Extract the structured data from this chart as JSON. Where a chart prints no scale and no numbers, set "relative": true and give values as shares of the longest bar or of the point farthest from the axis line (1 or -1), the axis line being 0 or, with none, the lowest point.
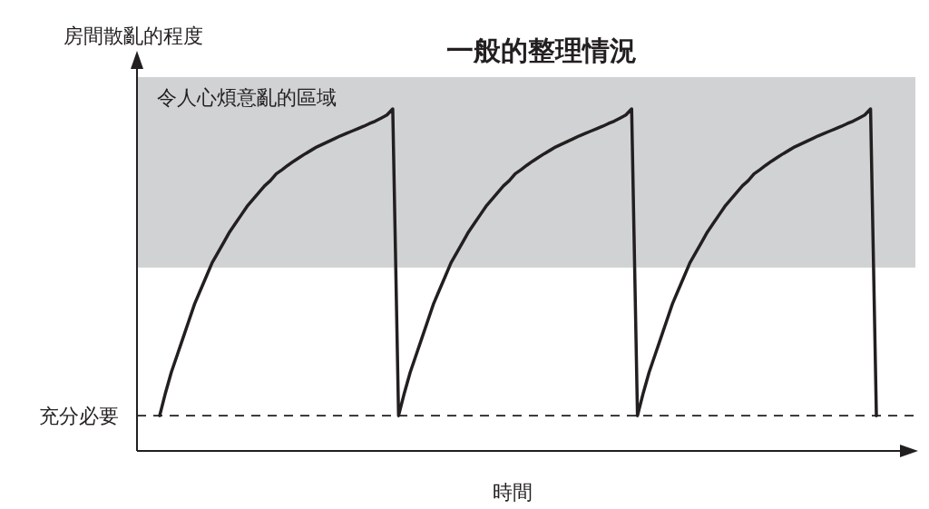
{
  "chart_data": {
    "type": "line",
    "title": "一般的整理情況",
    "xlabel": "時間",
    "ylabel": "房間散亂的程度",
    "relative": true,
    "categories": [
      null,
      null,
      null,
      null,
      null,
      null,
      null,
      null,
      null,
      null,
      null,
      null,
      null,
      null,
      null,
      null,
      null,
      null,
      null,
      null,
      null,
      null,
      null,
      null,
      null,
      null,
      null,
      null,
      null,
      null,
      null,
      null,
      null,
      null,
      null,
      null,
      null,
      null,
      null,
      null,
      null,
      null,
      null,
      null,
      null,
      null,
      null,
      null,
      null,
      null,
      null,
      null,
      null,
      null,
      null,
      null,
      null,
      null,
      null,
      null,
      null,
      null,
      null,
      null,
      null,
      null,
      null,
      null,
      null,
      null,
      null,
      null,
      null,
      null,
      null,
      null,
      null,
      null,
      null,
      null,
      null,
      null,
      null,
      null,
      null,
      null,
      null,
      null,
      null,
      null,
      null,
      null,
      null,
      null,
      null,
      null,
      null,
      null,
      null,
      null,
      null,
      null,
      null,
      null,
      null,
      null,
      null,
      null,
      null,
      null,
      null,
      null,
      null,
      null,
      null,
      null,
      null,
      null,
      null,
      null,
      null,
      null,
      null,
      null
    ],
    "series": [
      {
        "color": "#231f20",
        "values": [
          0.103,
          0.17,
          0.23,
          0.28,
          0.33,
          0.38,
          0.43,
          0.47,
          0.51,
          0.55,
          0.58,
          0.61,
          0.64,
          0.665,
          0.69,
          0.715,
          0.735,
          0.755,
          0.775,
          0.79,
          0.81,
          0.822,
          0.835,
          0.847,
          0.858,
          0.869,
          0.879,
          0.889,
          0.897,
          0.905,
          0.913,
          0.921,
          0.928,
          0.935,
          0.942,
          0.949,
          0.957,
          0.964,
          0.973,
          0.982,
          1,
          0.103,
          0.17,
          0.23,
          0.28,
          0.33,
          0.38,
          0.43,
          0.47,
          0.51,
          0.55,
          0.58,
          0.61,
          0.64,
          0.665,
          0.69,
          0.715,
          0.735,
          0.755,
          0.775,
          0.79,
          0.81,
          0.822,
          0.835,
          0.847,
          0.858,
          0.869,
          0.879,
          0.889,
          0.897,
          0.905,
          0.913,
          0.921,
          0.928,
          0.935,
          0.942,
          0.949,
          0.957,
          0.964,
          0.973,
          0.982,
          1,
          0.103,
          0.17,
          0.23,
          0.28,
          0.33,
          0.38,
          0.43,
          0.47,
          0.51,
          0.55,
          0.58,
          0.61,
          0.64,
          0.665,
          0.69,
          0.715,
          0.735,
          0.755,
          0.775,
          0.79,
          0.81,
          0.822,
          0.835,
          0.847,
          0.858,
          0.869,
          0.879,
          0.889,
          0.897,
          0.905,
          0.913,
          0.921,
          0.928,
          0.935,
          0.942,
          0.949,
          0.957,
          0.964,
          0.973,
          0.982,
          1,
          0.103
        ]
      }
    ],
    "ref_lines": [
      {
        "axis": "y",
        "value": 0.103,
        "label": "充分必要",
        "color": "#231f20",
        "line_style": "dashed"
      }
    ],
    "bands": [
      {
        "axis": "y",
        "from": 0.536,
        "to": 1.093,
        "label": "令人心煩意亂的區域",
        "color": "#d1d2d4"
      }
    ],
    "grid": false,
    "marker": "none",
    "line_style": "solid"
  }
}
